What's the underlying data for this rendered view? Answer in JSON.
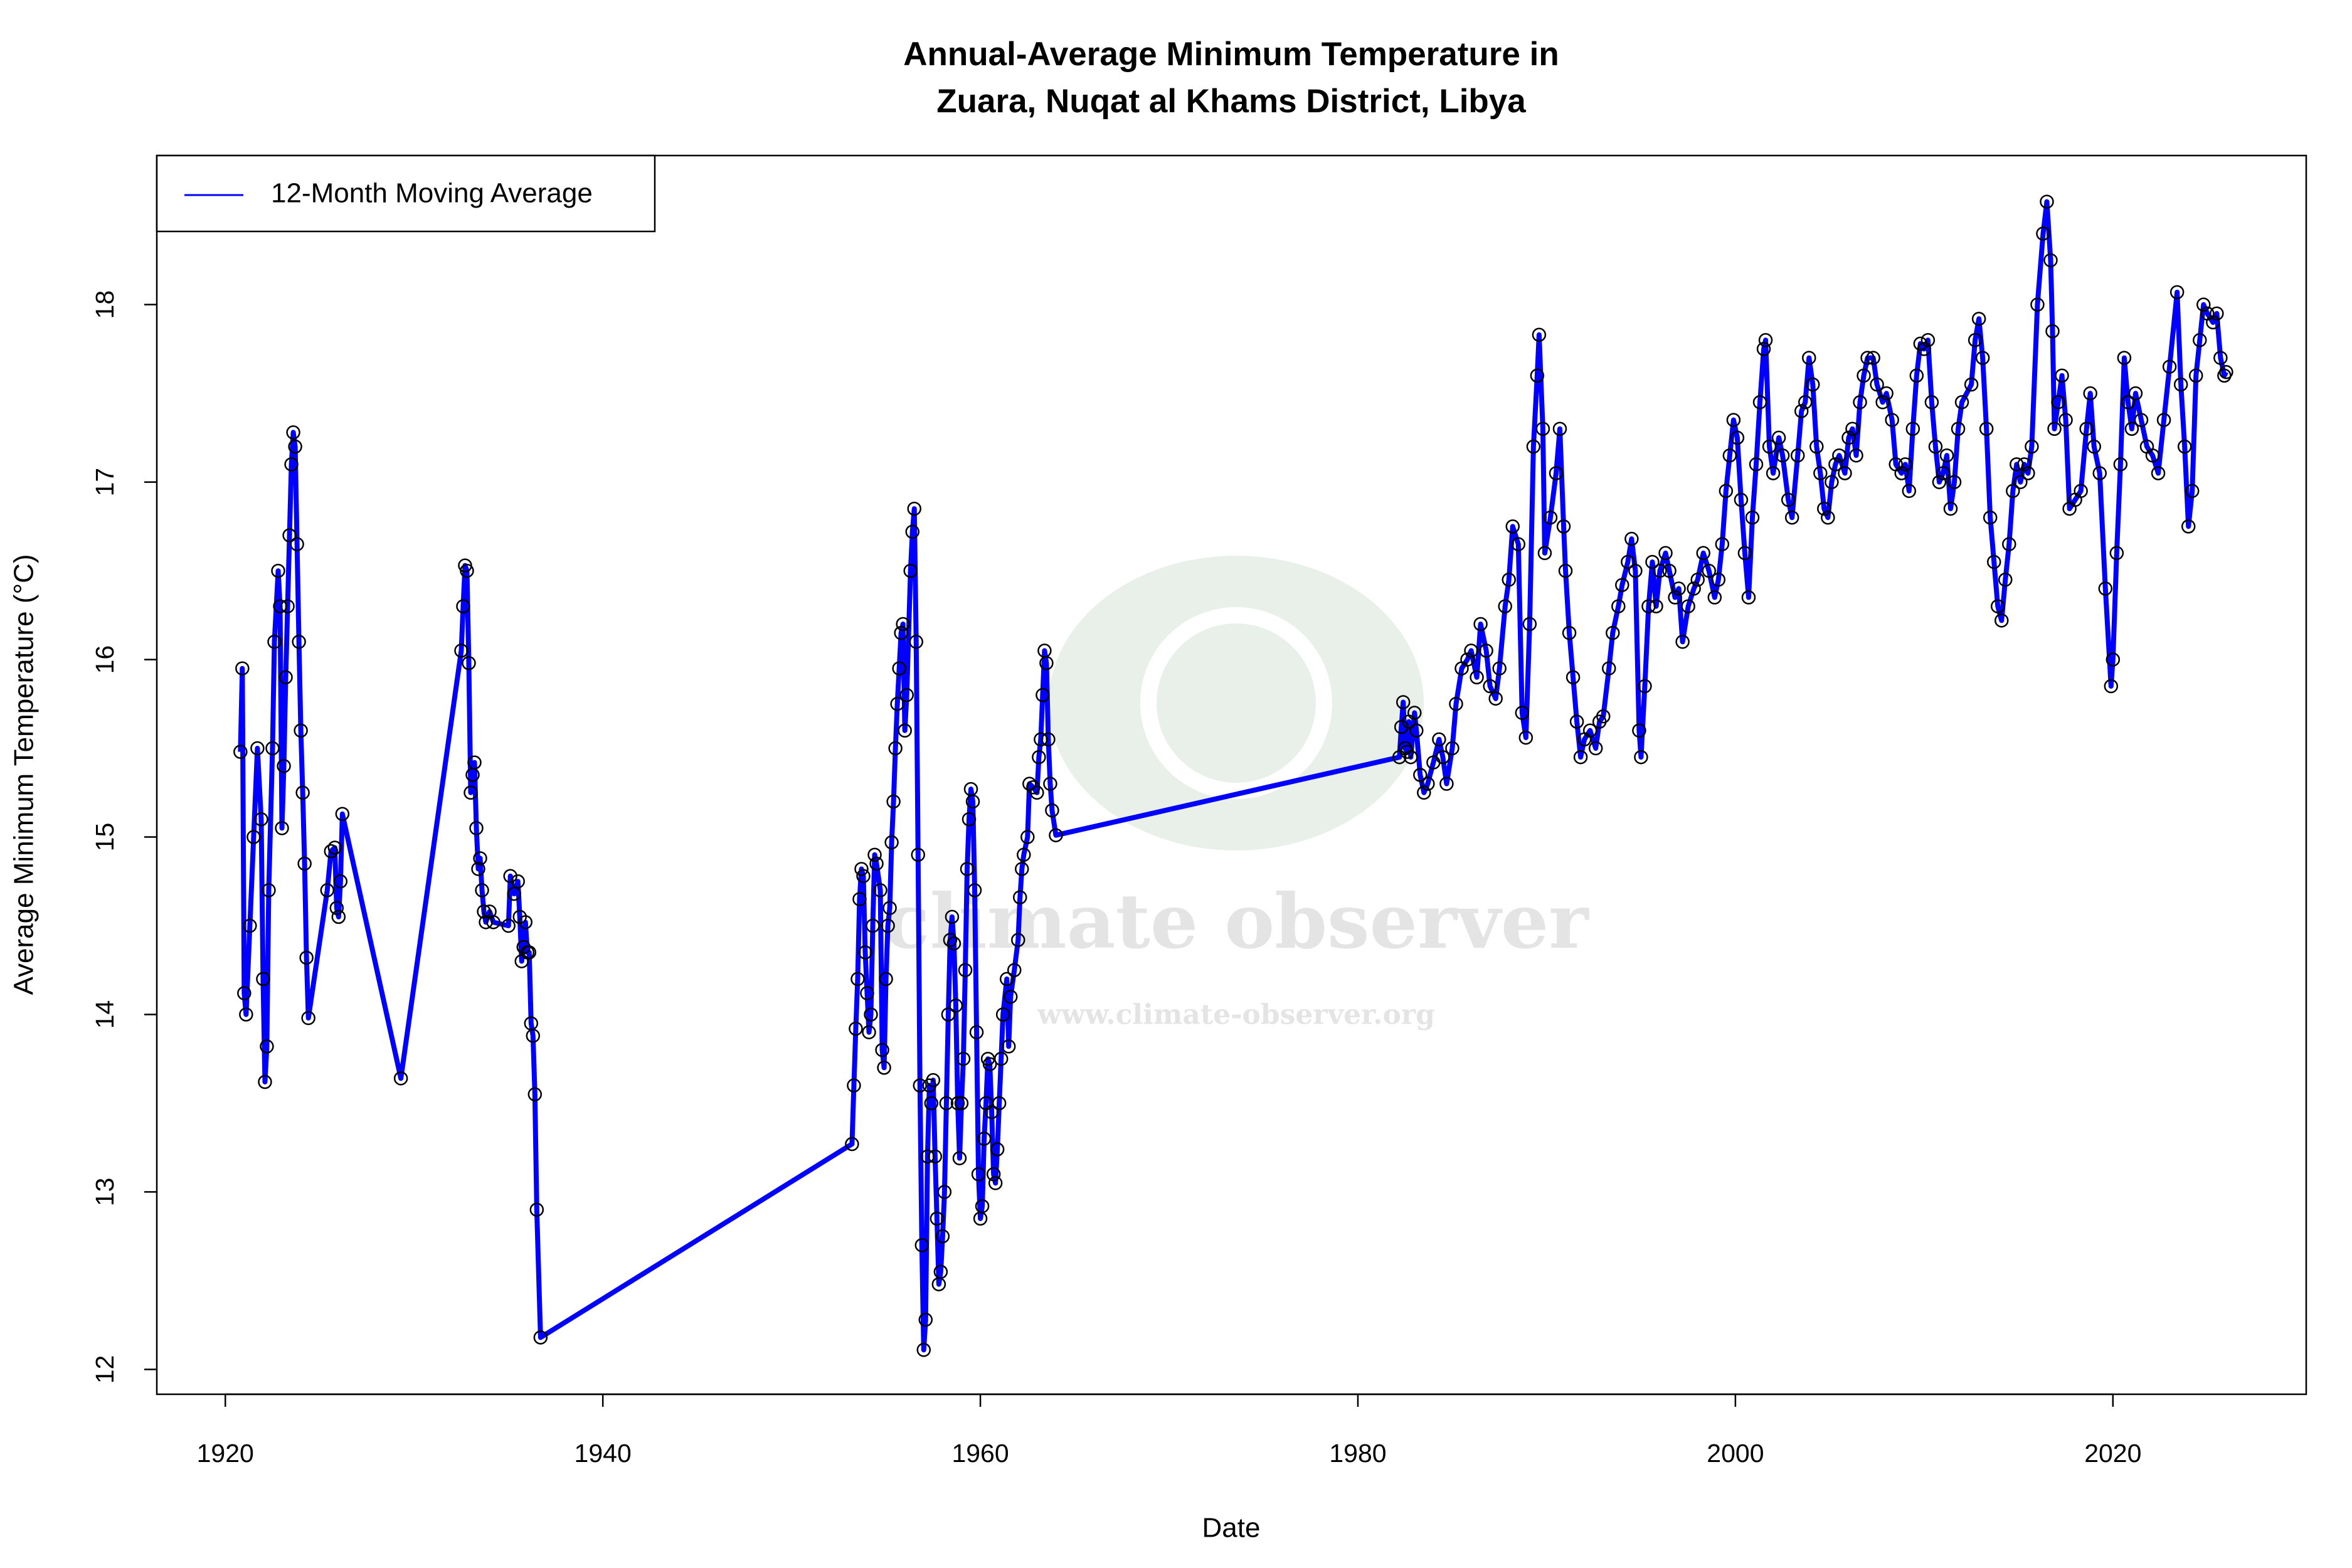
{
  "chart_data": {
    "type": "line",
    "title": [
      "Annual-Average Minimum Temperature in",
      "Zuara, Nuqat al Khams District, Libya"
    ],
    "x_label": "Date",
    "y_label": "Average Minimum Temperature (°C)",
    "watermark": "climate observer",
    "watermark_url": "www.climate-observer.org",
    "legend": "top-left",
    "grid": false,
    "markers": true,
    "xlim": [
      1916.37,
      2030.24
    ],
    "ylim": [
      11.86,
      18.84
    ],
    "xticks": [
      1920,
      1940,
      1960,
      1980,
      2000,
      2020
    ],
    "yticks": [
      12,
      13,
      14,
      15,
      16,
      17,
      18
    ],
    "x": [
      1920.8,
      1920.9,
      1921.0,
      1921.1,
      1921.3,
      1921.5,
      1921.7,
      1921.9,
      1922.0,
      1922.1,
      1922.2,
      1922.3,
      1922.5,
      1922.6,
      1922.8,
      1922.9,
      1923.0,
      1923.1,
      1923.2,
      1923.3,
      1923.4,
      1923.5,
      1923.6,
      1923.7,
      1923.8,
      1923.9,
      1924.0,
      1924.1,
      1924.2,
      1924.3,
      1924.4,
      1925.4,
      1925.6,
      1925.8,
      1925.9,
      1926.0,
      1926.1,
      1926.2,
      1929.3,
      1932.5,
      1932.6,
      1932.7,
      1932.8,
      1932.9,
      1933.0,
      1933.1,
      1933.2,
      1933.3,
      1933.4,
      1933.5,
      1933.6,
      1933.7,
      1933.8,
      1934.0,
      1934.2,
      1935.0,
      1935.1,
      1935.3,
      1935.5,
      1935.6,
      1935.7,
      1935.8,
      1935.9,
      1936.0,
      1936.1,
      1936.2,
      1936.3,
      1936.4,
      1936.5,
      1936.7,
      1953.2,
      1953.3,
      1953.4,
      1953.5,
      1953.6,
      1953.7,
      1953.8,
      1953.9,
      1954.0,
      1954.1,
      1954.2,
      1954.3,
      1954.4,
      1954.5,
      1954.7,
      1954.8,
      1954.9,
      1955.0,
      1955.1,
      1955.2,
      1955.3,
      1955.4,
      1955.5,
      1955.6,
      1955.7,
      1955.8,
      1955.9,
      1956.0,
      1956.1,
      1956.3,
      1956.4,
      1956.5,
      1956.6,
      1956.7,
      1956.8,
      1956.9,
      1957.0,
      1957.1,
      1957.2,
      1957.3,
      1957.4,
      1957.5,
      1957.6,
      1957.7,
      1957.8,
      1957.9,
      1958.0,
      1958.1,
      1958.2,
      1958.3,
      1958.4,
      1958.5,
      1958.6,
      1958.7,
      1958.8,
      1958.9,
      1959.0,
      1959.1,
      1959.2,
      1959.3,
      1959.4,
      1959.5,
      1959.6,
      1959.7,
      1959.8,
      1959.9,
      1960.0,
      1960.1,
      1960.2,
      1960.3,
      1960.4,
      1960.5,
      1960.6,
      1960.7,
      1960.8,
      1960.9,
      1961.0,
      1961.1,
      1961.2,
      1961.4,
      1961.5,
      1961.6,
      1961.8,
      1962.0,
      1962.1,
      1962.2,
      1962.3,
      1962.5,
      1962.6,
      1962.8,
      1963.0,
      1963.1,
      1963.2,
      1963.3,
      1963.4,
      1963.5,
      1963.6,
      1963.7,
      1963.8,
      1964.0,
      1982.2,
      1982.3,
      1982.4,
      1982.5,
      1982.6,
      1982.7,
      1982.8,
      1983.0,
      1983.1,
      1983.3,
      1983.5,
      1983.7,
      1984.0,
      1984.3,
      1984.5,
      1984.7,
      1985.0,
      1985.2,
      1985.5,
      1985.8,
      1986.0,
      1986.3,
      1986.5,
      1986.8,
      1987.0,
      1987.3,
      1987.5,
      1987.8,
      1988.0,
      1988.2,
      1988.5,
      1988.7,
      1988.9,
      1989.1,
      1989.3,
      1989.5,
      1989.6,
      1989.8,
      1989.9,
      1990.2,
      1990.5,
      1990.7,
      1990.9,
      1991.0,
      1991.2,
      1991.4,
      1991.6,
      1991.8,
      1992.0,
      1992.3,
      1992.6,
      1992.8,
      1993.0,
      1993.3,
      1993.5,
      1993.8,
      1994.0,
      1994.3,
      1994.5,
      1994.7,
      1994.9,
      1995.0,
      1995.2,
      1995.4,
      1995.6,
      1995.8,
      1996.0,
      1996.3,
      1996.5,
      1996.8,
      1997.0,
      1997.2,
      1997.5,
      1997.8,
      1998.0,
      1998.3,
      1998.6,
      1998.9,
      1999.1,
      1999.3,
      1999.5,
      1999.7,
      1999.9,
      2000.1,
      2000.3,
      2000.5,
      2000.7,
      2000.9,
      2001.1,
      2001.3,
      2001.5,
      2001.6,
      2001.8,
      2002.0,
      2002.3,
      2002.5,
      2002.8,
      2003.0,
      2003.3,
      2003.5,
      2003.7,
      2003.9,
      2004.1,
      2004.3,
      2004.5,
      2004.7,
      2004.9,
      2005.1,
      2005.3,
      2005.5,
      2005.8,
      2006.0,
      2006.2,
      2006.4,
      2006.6,
      2006.8,
      2007.0,
      2007.3,
      2007.5,
      2007.8,
      2008.0,
      2008.3,
      2008.5,
      2008.8,
      2009.0,
      2009.2,
      2009.4,
      2009.6,
      2009.8,
      2010.0,
      2010.2,
      2010.4,
      2010.6,
      2010.8,
      2011.0,
      2011.2,
      2011.4,
      2011.6,
      2011.8,
      2012.0,
      2012.5,
      2012.7,
      2012.9,
      2013.1,
      2013.3,
      2013.5,
      2013.7,
      2013.9,
      2014.1,
      2014.3,
      2014.5,
      2014.7,
      2014.9,
      2015.1,
      2015.3,
      2015.5,
      2015.7,
      2016.0,
      2016.3,
      2016.5,
      2016.7,
      2016.8,
      2016.9,
      2017.1,
      2017.3,
      2017.5,
      2017.7,
      2018.0,
      2018.3,
      2018.6,
      2018.8,
      2019.0,
      2019.3,
      2019.6,
      2019.9,
      2020.0,
      2020.2,
      2020.4,
      2020.6,
      2020.8,
      2021.0,
      2021.2,
      2021.5,
      2021.8,
      2022.1,
      2022.4,
      2022.7,
      2023.0,
      2023.4,
      2023.6,
      2023.8,
      2024.0,
      2024.2,
      2024.4,
      2024.6,
      2024.8,
      2025.0,
      2025.3,
      2025.5,
      2025.7,
      2025.9,
      2026.0
    ],
    "series": [
      {
        "name": "12-Month Moving Average",
        "color": "#0000ff",
        "marker_color": "#000000",
        "values": [
          15.48,
          15.95,
          14.12,
          14.0,
          14.5,
          15.0,
          15.5,
          15.1,
          14.2,
          13.62,
          13.82,
          14.7,
          15.5,
          16.1,
          16.5,
          16.3,
          15.05,
          15.4,
          15.9,
          16.3,
          16.7,
          17.1,
          17.28,
          17.2,
          16.65,
          16.1,
          15.6,
          15.25,
          14.85,
          14.32,
          13.98,
          14.7,
          14.92,
          14.94,
          14.6,
          14.55,
          14.75,
          15.13,
          13.64,
          16.05,
          16.3,
          16.53,
          16.5,
          15.98,
          15.25,
          15.35,
          15.42,
          15.05,
          14.82,
          14.88,
          14.7,
          14.58,
          14.52,
          14.58,
          14.52,
          14.5,
          14.78,
          14.68,
          14.75,
          14.55,
          14.3,
          14.38,
          14.52,
          14.35,
          14.35,
          13.95,
          13.88,
          13.55,
          12.9,
          12.18,
          13.27,
          13.6,
          13.92,
          14.2,
          14.65,
          14.82,
          14.78,
          14.35,
          14.12,
          13.9,
          14.0,
          14.5,
          14.9,
          14.85,
          14.7,
          13.8,
          13.7,
          14.2,
          14.5,
          14.6,
          14.97,
          15.2,
          15.5,
          15.75,
          15.95,
          16.15,
          16.2,
          15.6,
          15.8,
          16.5,
          16.72,
          16.85,
          16.1,
          14.9,
          13.6,
          12.7,
          12.11,
          12.28,
          13.2,
          13.6,
          13.5,
          13.63,
          13.2,
          12.85,
          12.48,
          12.55,
          12.75,
          13.0,
          13.5,
          14.0,
          14.42,
          14.55,
          14.4,
          14.05,
          13.5,
          13.19,
          13.5,
          13.75,
          14.25,
          14.82,
          15.1,
          15.27,
          15.2,
          14.7,
          13.9,
          13.1,
          12.85,
          12.92,
          13.3,
          13.5,
          13.75,
          13.72,
          13.45,
          13.1,
          13.05,
          13.24,
          13.5,
          13.75,
          14.0,
          14.2,
          13.82,
          14.1,
          14.25,
          14.42,
          14.66,
          14.82,
          14.9,
          15.0,
          15.3,
          15.28,
          15.25,
          15.45,
          15.55,
          15.8,
          16.05,
          15.98,
          15.55,
          15.3,
          15.15,
          15.01,
          15.45,
          15.62,
          15.76,
          15.5,
          15.48,
          15.65,
          15.45,
          15.7,
          15.6,
          15.35,
          15.25,
          15.3,
          15.42,
          15.55,
          15.45,
          15.3,
          15.5,
          15.75,
          15.95,
          16.0,
          16.05,
          15.9,
          16.2,
          16.05,
          15.85,
          15.78,
          15.95,
          16.3,
          16.45,
          16.75,
          16.65,
          15.7,
          15.56,
          16.2,
          17.2,
          17.6,
          17.83,
          17.3,
          16.6,
          16.8,
          17.05,
          17.3,
          16.75,
          16.5,
          16.15,
          15.9,
          15.65,
          15.45,
          15.55,
          15.6,
          15.5,
          15.65,
          15.68,
          15.95,
          16.15,
          16.3,
          16.42,
          16.55,
          16.68,
          16.5,
          15.6,
          15.45,
          15.85,
          16.3,
          16.55,
          16.3,
          16.5,
          16.6,
          16.5,
          16.35,
          16.4,
          16.1,
          16.3,
          16.4,
          16.45,
          16.6,
          16.5,
          16.35,
          16.45,
          16.65,
          16.95,
          17.15,
          17.35,
          17.25,
          16.9,
          16.6,
          16.35,
          16.8,
          17.1,
          17.45,
          17.75,
          17.8,
          17.2,
          17.05,
          17.25,
          17.15,
          16.9,
          16.8,
          17.15,
          17.4,
          17.45,
          17.7,
          17.55,
          17.2,
          17.05,
          16.85,
          16.8,
          17.0,
          17.1,
          17.15,
          17.05,
          17.25,
          17.3,
          17.15,
          17.45,
          17.6,
          17.7,
          17.7,
          17.55,
          17.45,
          17.5,
          17.35,
          17.1,
          17.05,
          17.1,
          16.95,
          17.3,
          17.6,
          17.78,
          17.75,
          17.8,
          17.45,
          17.2,
          17.0,
          17.05,
          17.15,
          16.85,
          17.0,
          17.3,
          17.45,
          17.55,
          17.8,
          17.92,
          17.7,
          17.3,
          16.8,
          16.55,
          16.3,
          16.22,
          16.45,
          16.65,
          16.95,
          17.1,
          17.0,
          17.1,
          17.05,
          17.2,
          18.0,
          18.4,
          18.58,
          18.25,
          17.85,
          17.3,
          17.45,
          17.6,
          17.35,
          16.85,
          16.9,
          16.95,
          17.3,
          17.5,
          17.2,
          17.05,
          16.4,
          15.85,
          16.0,
          16.6,
          17.1,
          17.7,
          17.45,
          17.3,
          17.5,
          17.35,
          17.2,
          17.15,
          17.05,
          17.35,
          17.65,
          18.07,
          17.55,
          17.2,
          16.75,
          16.95,
          17.6,
          17.8,
          18.0,
          17.95,
          17.9,
          17.95,
          17.7,
          17.6,
          17.62
        ]
      }
    ]
  }
}
